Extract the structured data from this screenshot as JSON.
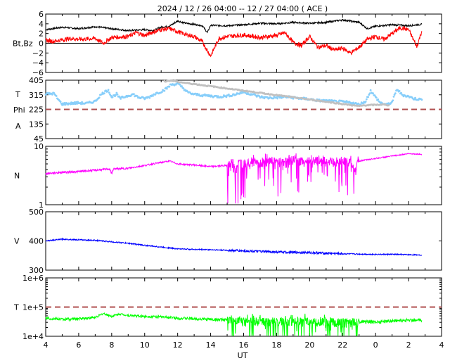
{
  "title": "2024 / 12 / 26   04:00 -- 12 / 27   04:00 ( ACE )",
  "xlabel": "UT",
  "colors": {
    "bt": "#000000",
    "bz": "#ff0000",
    "phi": "#c0c0c0",
    "temperature_phi_panel": "#87cefa",
    "density": "#ff00ff",
    "speed": "#0000ff",
    "temperature": "#00ff00",
    "reference": "#b05050"
  },
  "chart_data": [
    {
      "type": "line",
      "panel": "mag",
      "ylabel": "Bt,Bz",
      "ylim": [
        -6,
        6
      ],
      "yticks": [
        "6",
        "4",
        "2",
        "0",
        "−2",
        "−4",
        "−6"
      ],
      "xticks": [
        "4",
        "6",
        "8",
        "10",
        "12",
        "14",
        "16",
        "18",
        "20",
        "22",
        "0",
        "2",
        "4"
      ],
      "zero_line": 0,
      "series": [
        {
          "key": "bt",
          "x": [
            4.0,
            5.0,
            6.0,
            7.0,
            8.0,
            9.0,
            10.0,
            10.5,
            11.0,
            11.5,
            12.0,
            12.5,
            13.0,
            13.5,
            13.8,
            14.0,
            15.0,
            16.0,
            17.0,
            18.0,
            19.0,
            20.0,
            21.0,
            22.0,
            23.0,
            23.5,
            24.0,
            25.0,
            26.0,
            26.8
          ],
          "values": [
            2.8,
            3.3,
            3.0,
            3.4,
            3.0,
            2.6,
            2.8,
            2.6,
            3.3,
            3.5,
            4.6,
            4.1,
            3.9,
            3.6,
            2.2,
            3.7,
            3.6,
            3.8,
            4.1,
            4.0,
            4.3,
            4.1,
            4.3,
            4.8,
            4.3,
            3.0,
            3.5,
            3.8,
            3.6,
            3.9
          ]
        },
        {
          "key": "bz",
          "x": [
            4.0,
            4.5,
            5.0,
            5.5,
            6.0,
            7.0,
            7.5,
            8.0,
            9.0,
            9.5,
            10.0,
            10.5,
            11.0,
            11.5,
            12.0,
            12.5,
            13.0,
            13.5,
            13.8,
            14.0,
            14.5,
            15.0,
            16.0,
            17.0,
            18.0,
            18.5,
            19.0,
            19.5,
            20.0,
            20.5,
            21.0,
            21.5,
            22.0,
            22.5,
            23.0,
            23.5,
            24.0,
            24.5,
            25.0,
            25.5,
            26.0,
            26.5,
            26.8
          ],
          "values": [
            0.6,
            0.4,
            0.7,
            1.0,
            0.8,
            1.0,
            0.0,
            1.2,
            1.4,
            2.2,
            1.6,
            2.3,
            2.8,
            3.0,
            2.4,
            1.8,
            1.4,
            0.3,
            -1.5,
            -2.6,
            1.0,
            1.4,
            1.7,
            1.2,
            1.6,
            2.2,
            0.2,
            -0.5,
            1.4,
            -0.8,
            -0.5,
            -1.4,
            -1.0,
            -2.0,
            -0.8,
            0.8,
            1.4,
            0.8,
            2.0,
            3.2,
            2.8,
            -0.7,
            2.5
          ]
        }
      ]
    },
    {
      "type": "scatter",
      "panel": "phi_temp",
      "ylabel_lines": [
        "T",
        "Phi",
        "A"
      ],
      "ylim": [
        45,
        405
      ],
      "yticks": [
        "405",
        "315",
        "225",
        "135",
        "45"
      ],
      "reference_line": 225,
      "series": [
        {
          "key": "temperature_phi_panel",
          "x": [
            4.0,
            4.5,
            4.8,
            5.0,
            5.5,
            6.0,
            6.5,
            7.0,
            7.3,
            7.5,
            7.8,
            8.0,
            8.3,
            8.5,
            9.0,
            9.3,
            9.6,
            10.0,
            10.3,
            10.6,
            11.0,
            11.3,
            11.6,
            12.0,
            12.3,
            12.6,
            13.0,
            13.5,
            14.0,
            14.5,
            15.0,
            15.5,
            16.0,
            16.5,
            17.0,
            17.5,
            18.0,
            18.5,
            19.0,
            19.5,
            20.0,
            20.5,
            21.0,
            21.5,
            22.0,
            22.5,
            23.0,
            23.4,
            23.7,
            24.0,
            24.3,
            24.7,
            25.0,
            25.3,
            25.6,
            26.0,
            26.3,
            26.8
          ],
          "values": [
            320,
            323,
            280,
            258,
            262,
            265,
            262,
            275,
            310,
            328,
            345,
            300,
            320,
            292,
            310,
            318,
            300,
            292,
            302,
            320,
            335,
            352,
            378,
            382,
            360,
            330,
            318,
            312,
            308,
            303,
            308,
            318,
            332,
            318,
            302,
            296,
            298,
            302,
            298,
            292,
            288,
            280,
            278,
            274,
            272,
            267,
            255,
            275,
            340,
            300,
            265,
            255,
            270,
            350,
            315,
            305,
            292,
            285
          ]
        },
        {
          "key": "phi",
          "x": [
            11.2,
            11.5,
            11.8,
            12.0,
            23.0,
            23.3,
            24.5,
            24.8
          ],
          "values": [
            398,
            402,
            400,
            395,
            245,
            250,
            255,
            250
          ]
        }
      ]
    },
    {
      "type": "line",
      "panel": "density",
      "ylabel": "N",
      "scale": "log",
      "ylim": [
        1,
        10
      ],
      "yticks": [
        "10",
        "1"
      ],
      "series": [
        {
          "key": "density",
          "x": [
            4.0,
            5.0,
            6.0,
            7.0,
            7.9,
            8.0,
            8.1,
            9.0,
            10.0,
            11.0,
            11.5,
            12.0,
            13.0,
            14.0,
            15.0,
            15.4,
            15.5,
            15.6,
            16.0,
            16.5,
            17.0,
            17.5,
            18.0,
            18.5,
            19.0,
            19.5,
            20.0,
            20.5,
            21.0,
            21.5,
            22.0,
            22.5,
            22.8,
            23.0,
            24.0,
            25.0,
            26.0,
            26.8
          ],
          "values": [
            3.4,
            3.6,
            3.7,
            3.9,
            4.1,
            3.3,
            4.1,
            4.2,
            4.7,
            5.3,
            5.6,
            5.0,
            4.8,
            4.5,
            4.7,
            5.2,
            2.8,
            5.0,
            5.3,
            5.6,
            5.2,
            5.5,
            5.8,
            5.4,
            6.0,
            5.5,
            5.8,
            5.6,
            5.9,
            5.4,
            5.7,
            5.2,
            4.0,
            5.6,
            6.2,
            6.8,
            7.5,
            7.3
          ]
        }
      ]
    },
    {
      "type": "line",
      "panel": "speed",
      "ylabel": "V",
      "ylim": [
        300,
        500
      ],
      "yticks": [
        "500",
        "400",
        "300"
      ],
      "series": [
        {
          "key": "speed",
          "x": [
            4.0,
            5.0,
            6.0,
            7.0,
            8.0,
            9.0,
            10.0,
            11.0,
            12.0,
            13.0,
            14.0,
            15.0,
            16.0,
            17.0,
            18.0,
            19.0,
            20.0,
            21.0,
            22.0,
            23.0,
            24.0,
            25.0,
            26.0,
            26.8
          ],
          "values": [
            400,
            406,
            404,
            402,
            397,
            392,
            385,
            379,
            373,
            371,
            370,
            368,
            366,
            364,
            362,
            361,
            360,
            358,
            356,
            355,
            354,
            354,
            353,
            352
          ]
        }
      ]
    },
    {
      "type": "line",
      "panel": "temperature",
      "ylabel": "T",
      "scale": "log",
      "ylim": [
        10000,
        1000000
      ],
      "yticks": [
        "1e+6",
        "1e+5",
        "1e+4"
      ],
      "reference_line": 100000,
      "series": [
        {
          "key": "temperature",
          "x": [
            4.0,
            5.0,
            6.0,
            7.0,
            7.5,
            8.0,
            8.5,
            9.0,
            10.0,
            11.0,
            12.0,
            13.0,
            14.0,
            15.0,
            16.0,
            17.0,
            18.0,
            19.0,
            20.0,
            21.0,
            22.0,
            23.0,
            24.0,
            25.0,
            26.0,
            26.8
          ],
          "values": [
            42000,
            38000,
            40000,
            44000,
            60000,
            48000,
            58000,
            52000,
            48000,
            46000,
            42000,
            40000,
            38000,
            36000,
            32000,
            34000,
            33000,
            32000,
            31000,
            33000,
            30000,
            32000,
            31000,
            34000,
            36000,
            35000
          ]
        }
      ]
    }
  ]
}
